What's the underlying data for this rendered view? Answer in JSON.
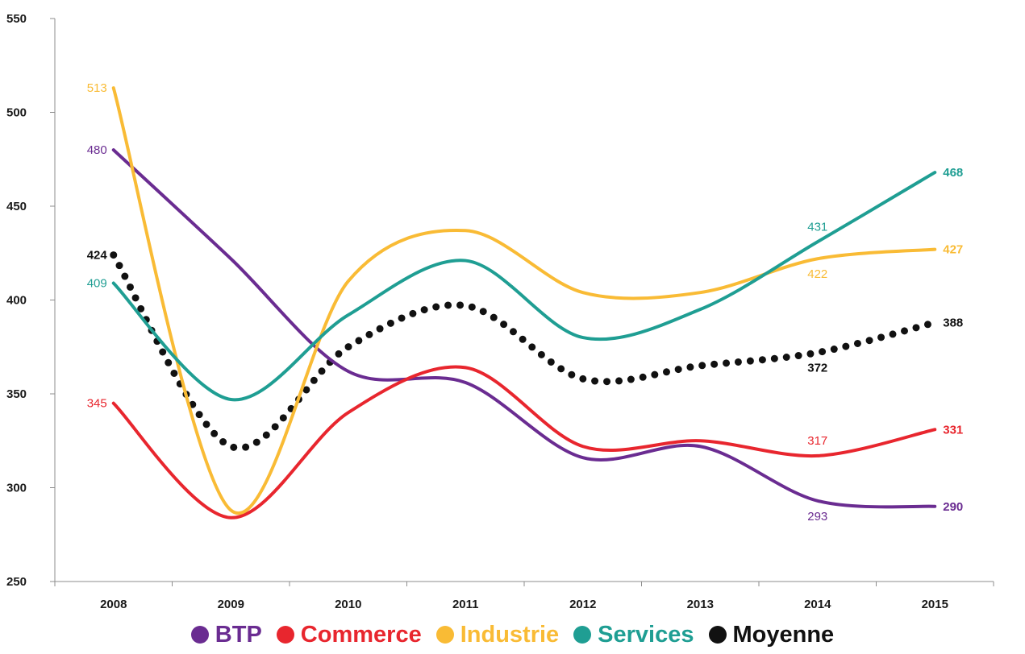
{
  "chart_data": {
    "type": "line",
    "categories": [
      "2008",
      "2009",
      "2010",
      "2011",
      "2012",
      "2013",
      "2014",
      "2015"
    ],
    "y_ticks": [
      "250",
      "300",
      "350",
      "400",
      "450",
      "500",
      "550"
    ],
    "ylim": [
      250,
      550
    ],
    "grid": false,
    "legend_position": "bottom",
    "series": [
      {
        "name": "BTP",
        "color": "#6a2c91",
        "style": "solid",
        "values": [
          480,
          422,
          362,
          356,
          316,
          322,
          293,
          290
        ],
        "labels": [
          {
            "index": 0,
            "text": "480",
            "bold": false,
            "anchor": "left"
          },
          {
            "index": 6,
            "text": "293",
            "bold": false,
            "anchor": "below"
          },
          {
            "index": 7,
            "text": "290",
            "bold": true,
            "anchor": "right"
          }
        ]
      },
      {
        "name": "Commerce",
        "color": "#e8262e",
        "style": "solid",
        "values": [
          345,
          284,
          340,
          364,
          322,
          325,
          317,
          331
        ],
        "labels": [
          {
            "index": 0,
            "text": "345",
            "bold": false,
            "anchor": "left"
          },
          {
            "index": 6,
            "text": "317",
            "bold": false,
            "anchor": "above"
          },
          {
            "index": 7,
            "text": "331",
            "bold": true,
            "anchor": "right"
          }
        ]
      },
      {
        "name": "Industrie",
        "color": "#f9bb35",
        "style": "solid",
        "values": [
          513,
          288,
          410,
          437,
          404,
          404,
          422,
          427
        ],
        "labels": [
          {
            "index": 0,
            "text": "513",
            "bold": false,
            "anchor": "left"
          },
          {
            "index": 6,
            "text": "422",
            "bold": false,
            "anchor": "below"
          },
          {
            "index": 7,
            "text": "427",
            "bold": true,
            "anchor": "right"
          }
        ]
      },
      {
        "name": "Services",
        "color": "#1f9e93",
        "style": "solid",
        "values": [
          409,
          347,
          392,
          421,
          380,
          395,
          431,
          468
        ],
        "labels": [
          {
            "index": 0,
            "text": "409",
            "bold": false,
            "anchor": "left"
          },
          {
            "index": 6,
            "text": "431",
            "bold": false,
            "anchor": "above"
          },
          {
            "index": 7,
            "text": "468",
            "bold": true,
            "anchor": "right"
          }
        ]
      },
      {
        "name": "Moyenne",
        "color": "#111111",
        "style": "dotted",
        "values": [
          424,
          322,
          375,
          397,
          358,
          365,
          372,
          388
        ],
        "labels": [
          {
            "index": 0,
            "text": "424",
            "bold": true,
            "anchor": "left"
          },
          {
            "index": 6,
            "text": "372",
            "bold": true,
            "anchor": "below"
          },
          {
            "index": 7,
            "text": "388",
            "bold": true,
            "anchor": "right"
          }
        ]
      }
    ]
  }
}
